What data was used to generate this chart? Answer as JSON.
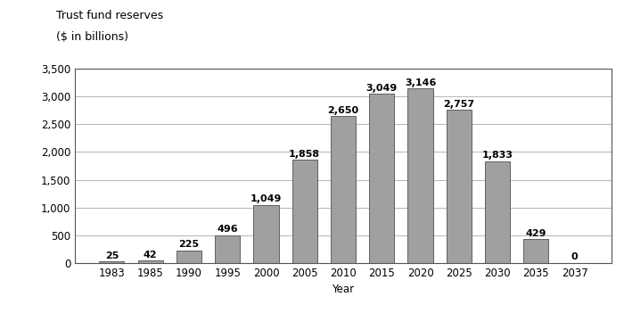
{
  "categories": [
    "1983",
    "1985",
    "1990",
    "1995",
    "2000",
    "2005",
    "2010",
    "2015",
    "2020",
    "2025",
    "2030",
    "2035",
    "2037"
  ],
  "values": [
    25,
    42,
    225,
    496,
    1049,
    1858,
    2650,
    3049,
    3146,
    2757,
    1833,
    429,
    0
  ],
  "bar_color": "#a0a0a0",
  "bar_edgecolor": "#606060",
  "title_line1": "Trust fund reserves",
  "title_line2": "($ in billions)",
  "xlabel": "Year",
  "ylim": [
    0,
    3500
  ],
  "yticks": [
    0,
    500,
    1000,
    1500,
    2000,
    2500,
    3000,
    3500
  ],
  "background_color": "#ffffff",
  "label_fontsize": 8,
  "title_fontsize": 9,
  "axis_fontsize": 8.5,
  "bar_width": 0.65
}
